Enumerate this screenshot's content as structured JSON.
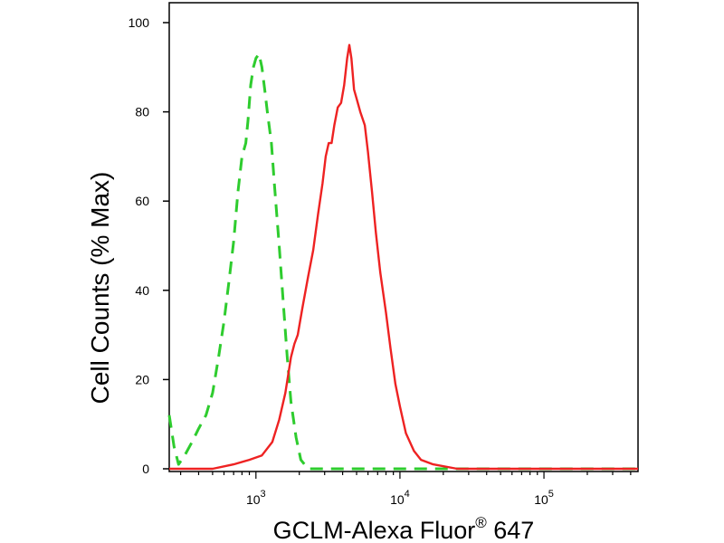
{
  "chart_data": {
    "type": "line",
    "xlabel": "GCLM-Alexa Fluor",
    "xlabel_superscript": "®",
    "xlabel_suffix": " 647",
    "ylabel": "Cell Counts (% Max)",
    "x_scale": "log",
    "xlim": [
      250,
      450000
    ],
    "ylim": [
      0,
      100
    ],
    "y_ticks": [
      0,
      20,
      40,
      60,
      80,
      100
    ],
    "x_ticks": [
      {
        "value": 1000,
        "base": "10",
        "exp": "3"
      },
      {
        "value": 10000,
        "base": "10",
        "exp": "4"
      },
      {
        "value": 100000,
        "base": "10",
        "exp": "5"
      }
    ],
    "grid": false,
    "series": [
      {
        "color": "#2ecc2e",
        "style": "dashed",
        "points": [
          [
            250,
            12
          ],
          [
            270,
            5
          ],
          [
            290,
            1
          ],
          [
            320,
            3
          ],
          [
            360,
            6
          ],
          [
            400,
            9
          ],
          [
            450,
            12
          ],
          [
            500,
            17
          ],
          [
            550,
            25
          ],
          [
            600,
            33
          ],
          [
            650,
            42
          ],
          [
            700,
            51
          ],
          [
            750,
            62
          ],
          [
            800,
            70
          ],
          [
            850,
            73
          ],
          [
            880,
            78
          ],
          [
            920,
            86
          ],
          [
            960,
            90
          ],
          [
            1000,
            92
          ],
          [
            1050,
            93
          ],
          [
            1100,
            90
          ],
          [
            1150,
            85
          ],
          [
            1200,
            80
          ],
          [
            1280,
            73
          ],
          [
            1350,
            63
          ],
          [
            1450,
            50
          ],
          [
            1550,
            37
          ],
          [
            1650,
            25
          ],
          [
            1750,
            15
          ],
          [
            1900,
            7
          ],
          [
            2050,
            2
          ],
          [
            2300,
            0
          ],
          [
            3000,
            0
          ],
          [
            6000,
            0
          ],
          [
            20000,
            0
          ],
          [
            100000,
            0
          ],
          [
            450000,
            0
          ]
        ]
      },
      {
        "color": "#ee2222",
        "style": "solid",
        "points": [
          [
            250,
            0
          ],
          [
            500,
            0
          ],
          [
            700,
            1
          ],
          [
            900,
            2
          ],
          [
            1100,
            3
          ],
          [
            1300,
            6
          ],
          [
            1450,
            11
          ],
          [
            1600,
            17
          ],
          [
            1750,
            25
          ],
          [
            1850,
            28
          ],
          [
            1950,
            30
          ],
          [
            2100,
            36
          ],
          [
            2300,
            43
          ],
          [
            2500,
            49
          ],
          [
            2700,
            57
          ],
          [
            2900,
            64
          ],
          [
            3050,
            70
          ],
          [
            3200,
            73
          ],
          [
            3350,
            73
          ],
          [
            3500,
            77
          ],
          [
            3700,
            81
          ],
          [
            3900,
            82
          ],
          [
            4100,
            86
          ],
          [
            4300,
            92
          ],
          [
            4450,
            95
          ],
          [
            4600,
            92
          ],
          [
            4800,
            85
          ],
          [
            5000,
            83
          ],
          [
            5300,
            80
          ],
          [
            5700,
            77
          ],
          [
            6000,
            71
          ],
          [
            6400,
            62
          ],
          [
            6800,
            53
          ],
          [
            7300,
            44
          ],
          [
            8000,
            35
          ],
          [
            8600,
            27
          ],
          [
            9300,
            19
          ],
          [
            10000,
            14
          ],
          [
            11000,
            8
          ],
          [
            12500,
            4
          ],
          [
            14000,
            2
          ],
          [
            17000,
            1
          ],
          [
            25000,
            0
          ],
          [
            100000,
            0
          ],
          [
            450000,
            0
          ]
        ]
      }
    ]
  }
}
